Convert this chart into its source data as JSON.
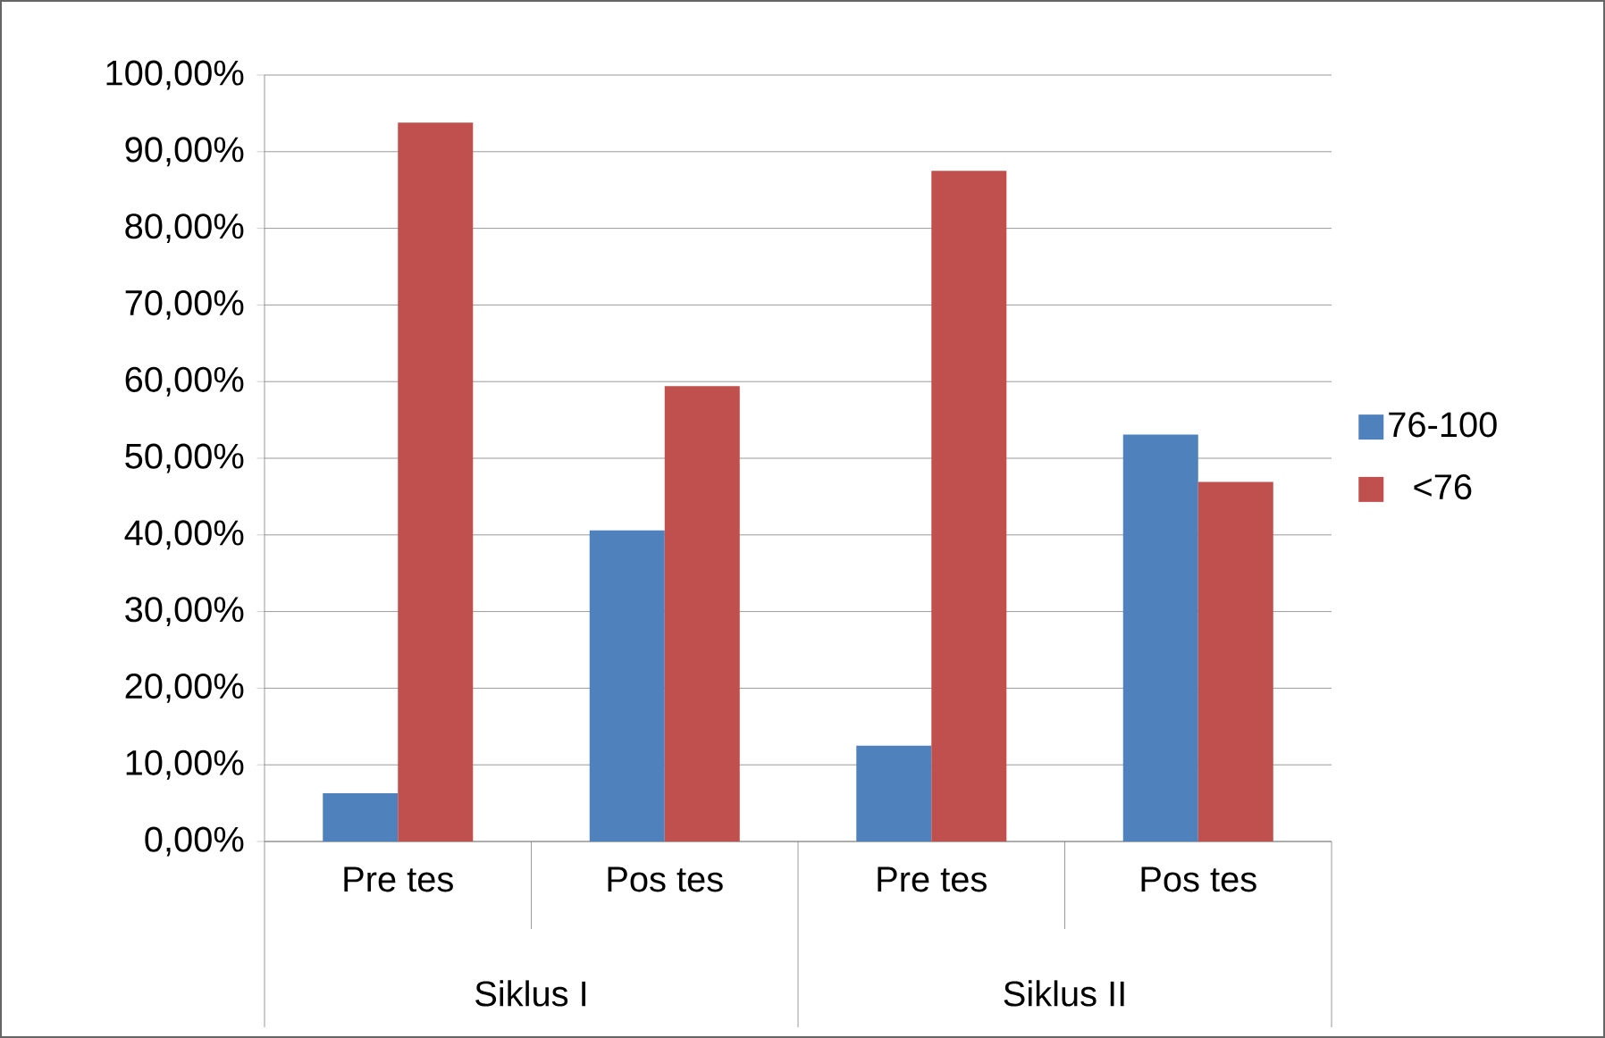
{
  "chart_data": {
    "type": "bar",
    "categories": [
      "Pre tes",
      "Pos tes",
      "Pre tes",
      "Pos tes"
    ],
    "series": [
      {
        "name": "76-100",
        "color": "#4f81bd",
        "values": [
          6.3,
          40.6,
          12.5,
          53.1
        ]
      },
      {
        "name": "<76",
        "color": "#c0504d",
        "values": [
          93.8,
          59.4,
          87.5,
          46.9
        ]
      }
    ],
    "ylim": [
      0,
      100
    ],
    "yticks": [
      {
        "value": 0,
        "label": "0,00%"
      },
      {
        "value": 10,
        "label": "10,00%"
      },
      {
        "value": 20,
        "label": "20,00%"
      },
      {
        "value": 30,
        "label": "30,00%"
      },
      {
        "value": 40,
        "label": "40,00%"
      },
      {
        "value": 50,
        "label": "50,00%"
      },
      {
        "value": 60,
        "label": "60,00%"
      },
      {
        "value": 70,
        "label": "70,00%"
      },
      {
        "value": 80,
        "label": "80,00%"
      },
      {
        "value": 90,
        "label": "90,00%"
      },
      {
        "value": 100,
        "label": "100,00%"
      }
    ],
    "grid": "y",
    "legend": "right",
    "annotations": [
      "Siklus I",
      "Siklus II"
    ]
  }
}
